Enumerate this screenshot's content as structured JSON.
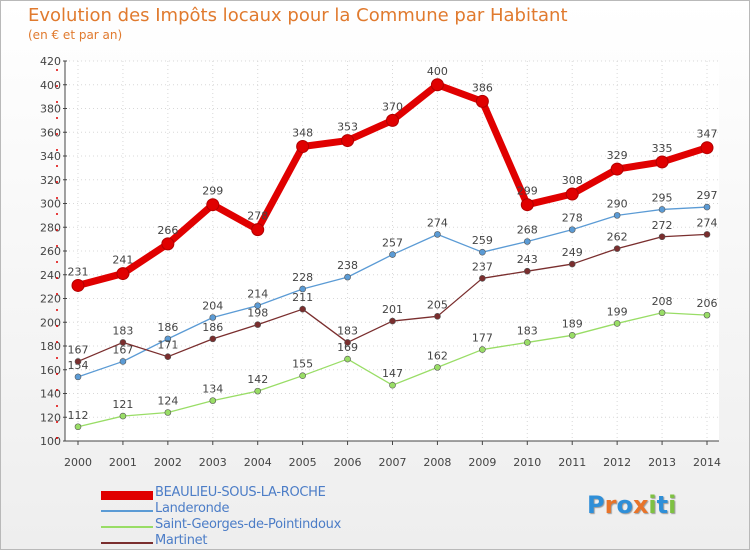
{
  "title": "Evolution des Impôts locaux pour la Commune par Habitant",
  "subtitle": "(en € et par an)",
  "brand": {
    "parts": [
      "P",
      "r",
      "o",
      "x",
      "i",
      "t",
      "i"
    ],
    "colors": [
      "#2f8fd8",
      "#e8742a",
      "#2f8fd8",
      "#e8742a",
      "#7ec142",
      "#2f8fd8",
      "#7ec142"
    ]
  },
  "chart_data": {
    "type": "line",
    "title": "Evolution des Impôts locaux pour la Commune par Habitant",
    "ylabel": "(en € et par an)",
    "ylim": [
      100,
      420
    ],
    "yticks": [
      100,
      120,
      140,
      160,
      180,
      200,
      220,
      240,
      260,
      280,
      300,
      320,
      340,
      360,
      380,
      400,
      420
    ],
    "categories": [
      "2000",
      "2001",
      "2002",
      "2003",
      "2004",
      "2005",
      "2006",
      "2007",
      "2008",
      "2009",
      "2010",
      "2011",
      "2012",
      "2013",
      "2014"
    ],
    "series": [
      {
        "name": "BEAULIEU-SOUS-LA-ROCHE",
        "color": "#e00000",
        "values": [
          231,
          241,
          266,
          299,
          278,
          348,
          353,
          370,
          400,
          386,
          299,
          308,
          329,
          335,
          347
        ]
      },
      {
        "name": "Landeronde",
        "color": "#5b9bd5",
        "values": [
          154,
          167,
          186,
          204,
          214,
          228,
          238,
          257,
          274,
          259,
          268,
          278,
          290,
          295,
          297
        ]
      },
      {
        "name": "Saint-Georges-de-Pointindoux",
        "color": "#99dd66",
        "values": [
          112,
          121,
          124,
          134,
          142,
          155,
          169,
          147,
          162,
          177,
          183,
          189,
          199,
          208,
          206
        ]
      },
      {
        "name": "Martinet",
        "color": "#7a2e2e",
        "values": [
          167,
          183,
          171,
          186,
          198,
          211,
          183,
          201,
          205,
          237,
          243,
          249,
          262,
          272,
          274
        ]
      }
    ]
  }
}
